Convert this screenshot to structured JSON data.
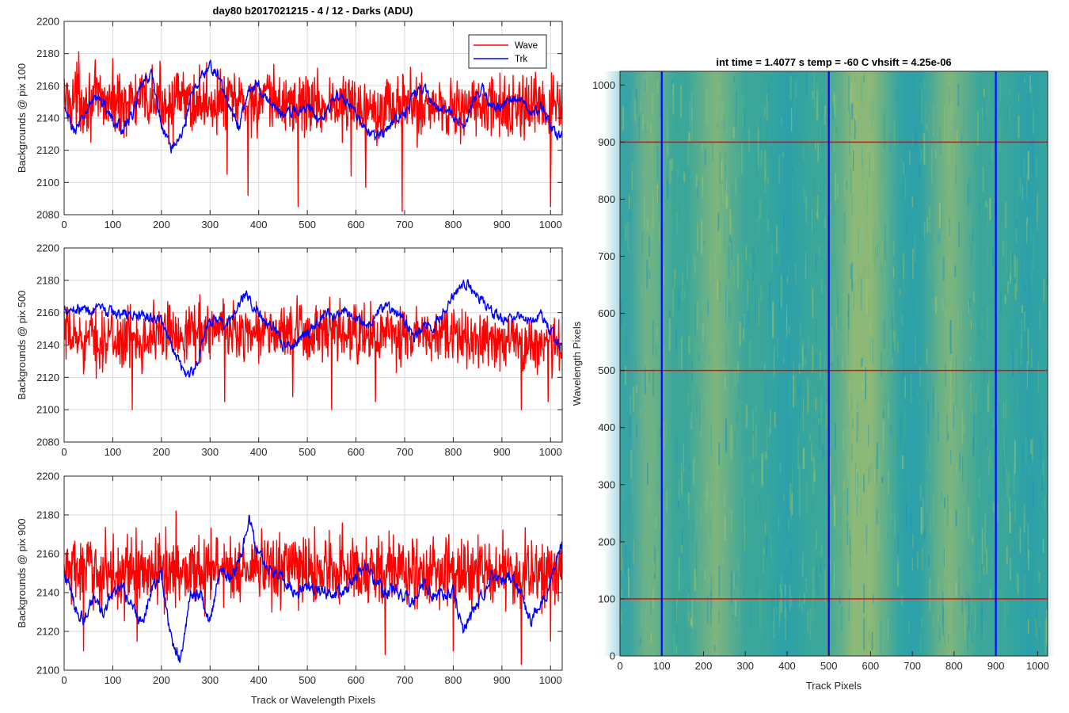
{
  "figure": {
    "left_title": "day80 b2017021215 - 4 / 12 - Darks (ADU)",
    "right_title": "int time = 1.4077 s   temp = -60 C   vhsift = 4.25e-06"
  },
  "colors": {
    "wave": "#ff0000",
    "trk": "#0000ff",
    "grid": "#d9d9d9",
    "axis": "#262626",
    "image_base": "#3aa79a",
    "image_warm": "#b9c265",
    "image_cool": "#1f9bb7"
  },
  "chart_data": [
    {
      "type": "line",
      "ylabel": "Backgrounds @ pix 100",
      "xlabel": "",
      "xlim": [
        0,
        1024
      ],
      "ylim": [
        2080,
        2200
      ],
      "xticks": [
        0,
        100,
        200,
        300,
        400,
        500,
        600,
        700,
        800,
        900,
        1000
      ],
      "yticks": [
        2080,
        2100,
        2120,
        2140,
        2160,
        2180,
        2200
      ],
      "grid": true,
      "legend": {
        "position": "top-right",
        "entries": [
          "Wave",
          "Trk"
        ]
      },
      "series": [
        {
          "name": "Wave",
          "noise_amplitude": 13,
          "anchors": [
            [
              0,
              2152
            ],
            [
              100,
              2150
            ],
            [
              200,
              2150
            ],
            [
              300,
              2150
            ],
            [
              400,
              2150
            ],
            [
              500,
              2149
            ],
            [
              600,
              2148
            ],
            [
              700,
              2148
            ],
            [
              800,
              2147
            ],
            [
              900,
              2146
            ],
            [
              1024,
              2146
            ]
          ],
          "spikes": [
            [
              30,
              2181
            ],
            [
              335,
              2105
            ],
            [
              378,
              2092
            ],
            [
              481,
              2085
            ],
            [
              590,
              2104
            ],
            [
              620,
              2097
            ],
            [
              695,
              2082
            ],
            [
              1000,
              2085
            ]
          ]
        },
        {
          "name": "Trk",
          "noise_amplitude": 3,
          "anchors": [
            [
              0,
              2145
            ],
            [
              20,
              2132
            ],
            [
              40,
              2140
            ],
            [
              60,
              2153
            ],
            [
              80,
              2150
            ],
            [
              100,
              2138
            ],
            [
              120,
              2133
            ],
            [
              140,
              2142
            ],
            [
              160,
              2160
            ],
            [
              180,
              2168
            ],
            [
              200,
              2135
            ],
            [
              220,
              2122
            ],
            [
              240,
              2128
            ],
            [
              260,
              2152
            ],
            [
              280,
              2165
            ],
            [
              300,
              2172
            ],
            [
              320,
              2165
            ],
            [
              340,
              2145
            ],
            [
              360,
              2135
            ],
            [
              380,
              2158
            ],
            [
              400,
              2160
            ],
            [
              420,
              2150
            ],
            [
              440,
              2145
            ],
            [
              460,
              2143
            ],
            [
              480,
              2145
            ],
            [
              500,
              2148
            ],
            [
              520,
              2140
            ],
            [
              540,
              2145
            ],
            [
              560,
              2153
            ],
            [
              580,
              2150
            ],
            [
              600,
              2145
            ],
            [
              620,
              2132
            ],
            [
              640,
              2128
            ],
            [
              660,
              2132
            ],
            [
              680,
              2140
            ],
            [
              700,
              2143
            ],
            [
              720,
              2155
            ],
            [
              740,
              2158
            ],
            [
              760,
              2148
            ],
            [
              780,
              2148
            ],
            [
              800,
              2140
            ],
            [
              820,
              2135
            ],
            [
              840,
              2150
            ],
            [
              860,
              2158
            ],
            [
              880,
              2145
            ],
            [
              900,
              2148
            ],
            [
              920,
              2152
            ],
            [
              940,
              2152
            ],
            [
              960,
              2140
            ],
            [
              980,
              2148
            ],
            [
              1000,
              2135
            ],
            [
              1024,
              2128
            ]
          ],
          "spikes": []
        }
      ]
    },
    {
      "type": "line",
      "ylabel": "Backgrounds @ pix 500",
      "xlabel": "",
      "xlim": [
        0,
        1024
      ],
      "ylim": [
        2080,
        2200
      ],
      "xticks": [
        0,
        100,
        200,
        300,
        400,
        500,
        600,
        700,
        800,
        900,
        1000
      ],
      "yticks": [
        2080,
        2100,
        2120,
        2140,
        2160,
        2180,
        2200
      ],
      "grid": true,
      "series": [
        {
          "name": "Wave",
          "noise_amplitude": 12,
          "anchors": [
            [
              0,
              2145
            ],
            [
              100,
              2143
            ],
            [
              200,
              2147
            ],
            [
              300,
              2150
            ],
            [
              400,
              2148
            ],
            [
              500,
              2147
            ],
            [
              600,
              2146
            ],
            [
              700,
              2145
            ],
            [
              800,
              2145
            ],
            [
              900,
              2143
            ],
            [
              1024,
              2140
            ]
          ],
          "spikes": [
            [
              140,
              2100
            ],
            [
              330,
              2105
            ],
            [
              470,
              2108
            ],
            [
              550,
              2100
            ],
            [
              640,
              2105
            ],
            [
              940,
              2100
            ],
            [
              995,
              2105
            ]
          ]
        },
        {
          "name": "Trk",
          "noise_amplitude": 3,
          "anchors": [
            [
              0,
              2163
            ],
            [
              50,
              2162
            ],
            [
              100,
              2160
            ],
            [
              150,
              2158
            ],
            [
              200,
              2155
            ],
            [
              230,
              2135
            ],
            [
              250,
              2122
            ],
            [
              270,
              2125
            ],
            [
              290,
              2150
            ],
            [
              310,
              2155
            ],
            [
              330,
              2152
            ],
            [
              350,
              2158
            ],
            [
              370,
              2172
            ],
            [
              390,
              2165
            ],
            [
              410,
              2155
            ],
            [
              430,
              2150
            ],
            [
              450,
              2140
            ],
            [
              470,
              2140
            ],
            [
              500,
              2148
            ],
            [
              520,
              2155
            ],
            [
              540,
              2158
            ],
            [
              560,
              2158
            ],
            [
              580,
              2160
            ],
            [
              600,
              2158
            ],
            [
              620,
              2152
            ],
            [
              640,
              2158
            ],
            [
              660,
              2165
            ],
            [
              680,
              2160
            ],
            [
              700,
              2155
            ],
            [
              720,
              2145
            ],
            [
              740,
              2152
            ],
            [
              760,
              2150
            ],
            [
              780,
              2160
            ],
            [
              800,
              2170
            ],
            [
              820,
              2178
            ],
            [
              840,
              2175
            ],
            [
              860,
              2168
            ],
            [
              880,
              2160
            ],
            [
              900,
              2155
            ],
            [
              920,
              2158
            ],
            [
              940,
              2158
            ],
            [
              960,
              2155
            ],
            [
              980,
              2160
            ],
            [
              1000,
              2150
            ],
            [
              1024,
              2135
            ]
          ],
          "spikes": []
        }
      ]
    },
    {
      "type": "line",
      "ylabel": "Backgrounds @ pix 900",
      "xlabel": "Track or Wavelength Pixels",
      "xlim": [
        0,
        1024
      ],
      "ylim": [
        2100,
        2200
      ],
      "xticks": [
        0,
        100,
        200,
        300,
        400,
        500,
        600,
        700,
        800,
        900,
        1000
      ],
      "yticks": [
        2100,
        2120,
        2140,
        2160,
        2180,
        2200
      ],
      "grid": true,
      "series": [
        {
          "name": "Wave",
          "noise_amplitude": 12,
          "anchors": [
            [
              0,
              2152
            ],
            [
              100,
              2150
            ],
            [
              200,
              2151
            ],
            [
              300,
              2152
            ],
            [
              400,
              2152
            ],
            [
              500,
              2152
            ],
            [
              600,
              2152
            ],
            [
              700,
              2151
            ],
            [
              800,
              2150
            ],
            [
              900,
              2150
            ],
            [
              1024,
              2150
            ]
          ],
          "spikes": [
            [
              40,
              2110
            ],
            [
              150,
              2115
            ],
            [
              230,
              2182
            ],
            [
              660,
              2108
            ],
            [
              800,
              2110
            ],
            [
              940,
              2103
            ],
            [
              1000,
              2115
            ]
          ]
        },
        {
          "name": "Trk",
          "noise_amplitude": 3,
          "anchors": [
            [
              0,
              2150
            ],
            [
              20,
              2135
            ],
            [
              40,
              2125
            ],
            [
              60,
              2138
            ],
            [
              80,
              2128
            ],
            [
              100,
              2140
            ],
            [
              120,
              2142
            ],
            [
              140,
              2132
            ],
            [
              160,
              2125
            ],
            [
              180,
              2142
            ],
            [
              200,
              2150
            ],
            [
              220,
              2115
            ],
            [
              240,
              2105
            ],
            [
              260,
              2140
            ],
            [
              280,
              2140
            ],
            [
              300,
              2125
            ],
            [
              320,
              2150
            ],
            [
              340,
              2148
            ],
            [
              360,
              2155
            ],
            [
              380,
              2178
            ],
            [
              400,
              2160
            ],
            [
              420,
              2152
            ],
            [
              440,
              2150
            ],
            [
              460,
              2145
            ],
            [
              480,
              2140
            ],
            [
              500,
              2145
            ],
            [
              520,
              2142
            ],
            [
              540,
              2140
            ],
            [
              560,
              2140
            ],
            [
              580,
              2142
            ],
            [
              600,
              2150
            ],
            [
              620,
              2152
            ],
            [
              640,
              2145
            ],
            [
              660,
              2140
            ],
            [
              680,
              2142
            ],
            [
              700,
              2138
            ],
            [
              720,
              2135
            ],
            [
              740,
              2145
            ],
            [
              760,
              2138
            ],
            [
              780,
              2140
            ],
            [
              800,
              2140
            ],
            [
              820,
              2120
            ],
            [
              840,
              2128
            ],
            [
              860,
              2140
            ],
            [
              880,
              2148
            ],
            [
              900,
              2145
            ],
            [
              920,
              2148
            ],
            [
              940,
              2138
            ],
            [
              960,
              2125
            ],
            [
              980,
              2135
            ],
            [
              1000,
              2145
            ],
            [
              1024,
              2165
            ]
          ],
          "spikes": []
        }
      ]
    },
    {
      "type": "heatmap",
      "title": "int time = 1.4077 s   temp = -60 C   vhsift = 4.25e-06",
      "xlabel": "Track Pixels",
      "ylabel": "Wavelength Pixels",
      "xlim": [
        0,
        1024
      ],
      "ylim": [
        0,
        1024
      ],
      "xticks": [
        0,
        100,
        200,
        300,
        400,
        500,
        600,
        700,
        800,
        900,
        1000
      ],
      "yticks": [
        0,
        100,
        200,
        300,
        400,
        500,
        600,
        700,
        800,
        900,
        1000
      ],
      "colormap": "parula-like",
      "warm_bands_x": [
        60,
        230,
        560,
        600,
        790
      ],
      "cool_bands_x": [
        20,
        400,
        700,
        980
      ],
      "vertical_markers": [
        100,
        500,
        900
      ],
      "horizontal_markers": [
        100,
        500,
        900
      ]
    }
  ]
}
